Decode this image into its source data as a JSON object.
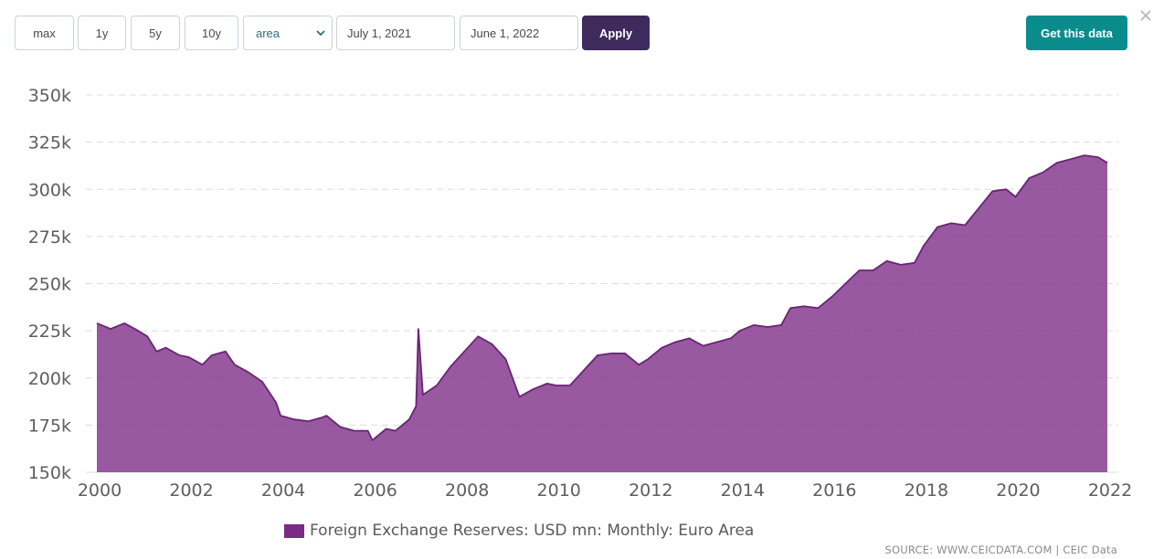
{
  "toolbar": {
    "range_buttons": [
      "max",
      "1y",
      "5y",
      "10y"
    ],
    "chart_type_select": "area",
    "start_date": "July 1, 2021",
    "end_date": "June 1, 2022",
    "apply_label": "Apply",
    "get_data_label": "Get this data"
  },
  "colors": {
    "series_fill": "#7b2a86",
    "series_line": "#6a2375",
    "apply_bg": "#3e2a5c",
    "get_data_bg": "#0a8c8c"
  },
  "source": "SOURCE: WWW.CEICDATA.COM | CEIC Data",
  "chart_data": {
    "type": "area",
    "title": "",
    "xlabel": "",
    "ylabel": "",
    "xlim": [
      2000,
      2022
    ],
    "ylim": [
      150,
      350
    ],
    "x_ticks": [
      2000,
      2002,
      2004,
      2006,
      2008,
      2010,
      2012,
      2014,
      2016,
      2018,
      2020,
      2022
    ],
    "y_ticks": [
      150,
      175,
      200,
      225,
      250,
      275,
      300,
      325,
      350
    ],
    "y_tick_labels": [
      "150k",
      "175k",
      "200k",
      "225k",
      "250k",
      "275k",
      "300k",
      "325k",
      "350k"
    ],
    "grid": "horizontal dashed",
    "legend_position": "bottom-center",
    "series": [
      {
        "name": "Foreign Exchange Reserves: USD mn: Monthly: Euro Area",
        "x": [
          2000,
          2000.3,
          2000.6,
          2000.9,
          2001.1,
          2001.3,
          2001.5,
          2001.8,
          2002.0,
          2002.3,
          2002.5,
          2002.8,
          2003.0,
          2003.3,
          2003.6,
          2003.9,
          2004.0,
          2004.3,
          2004.6,
          2004.9,
          2005.0,
          2005.3,
          2005.6,
          2005.9,
          2006.0,
          2006.3,
          2006.5,
          2006.8,
          2006.95,
          2007.0,
          2007.1,
          2007.4,
          2007.7,
          2008.0,
          2008.3,
          2008.6,
          2008.9,
          2009.2,
          2009.5,
          2009.8,
          2010.0,
          2010.3,
          2010.6,
          2010.9,
          2011.2,
          2011.5,
          2011.8,
          2012.0,
          2012.3,
          2012.6,
          2012.9,
          2013.2,
          2013.5,
          2013.8,
          2014.0,
          2014.3,
          2014.6,
          2014.9,
          2015.1,
          2015.4,
          2015.7,
          2016.0,
          2016.3,
          2016.6,
          2016.9,
          2017.2,
          2017.5,
          2017.8,
          2018.0,
          2018.3,
          2018.6,
          2018.9,
          2019.2,
          2019.5,
          2019.8,
          2020.0,
          2020.3,
          2020.6,
          2020.9,
          2021.2,
          2021.5,
          2021.8,
          2022.0
        ],
        "values": [
          229,
          226,
          229,
          225,
          222,
          214,
          216,
          212,
          211,
          207,
          212,
          214,
          207,
          203,
          198,
          187,
          180,
          178,
          177,
          179,
          180,
          174,
          172,
          172,
          167,
          173,
          172,
          178,
          185,
          226,
          191,
          196,
          206,
          214,
          222,
          218,
          210,
          190,
          194,
          197,
          196,
          196,
          204,
          212,
          213,
          213,
          207,
          210,
          216,
          219,
          221,
          217,
          219,
          221,
          225,
          228,
          227,
          228,
          237,
          238,
          237,
          243,
          250,
          257,
          257,
          262,
          260,
          261,
          270,
          280,
          282,
          281,
          290,
          299,
          300,
          296,
          306,
          309,
          314,
          316,
          318,
          317,
          314
        ]
      }
    ]
  }
}
